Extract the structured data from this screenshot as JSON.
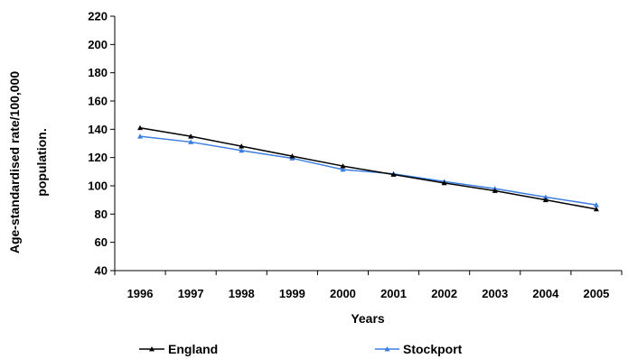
{
  "chart_data": {
    "type": "line",
    "x": [
      "1996",
      "1997",
      "1998",
      "1999",
      "2000",
      "2001",
      "2002",
      "2003",
      "2004",
      "2005"
    ],
    "series": [
      {
        "name": "England",
        "values": [
          141,
          135,
          128,
          121,
          114,
          108,
          102,
          96.5,
          90,
          83.5
        ],
        "color": "#000000",
        "marker": "triangle"
      },
      {
        "name": "Stockport",
        "values": [
          135,
          131,
          125,
          119.5,
          111.5,
          108.5,
          103,
          98,
          92,
          86.5
        ],
        "color": "#3d7fe0",
        "marker": "triangle"
      }
    ],
    "yticks": [
      "40",
      "60",
      "80",
      "100",
      "120",
      "140",
      "160",
      "180",
      "200",
      "220"
    ],
    "ylim": [
      40,
      220
    ],
    "xlabel": "Years",
    "ylabel_lines": [
      "Age-standardised rate/100,000",
      "population."
    ],
    "legend_position": "bottom",
    "grid": false
  }
}
